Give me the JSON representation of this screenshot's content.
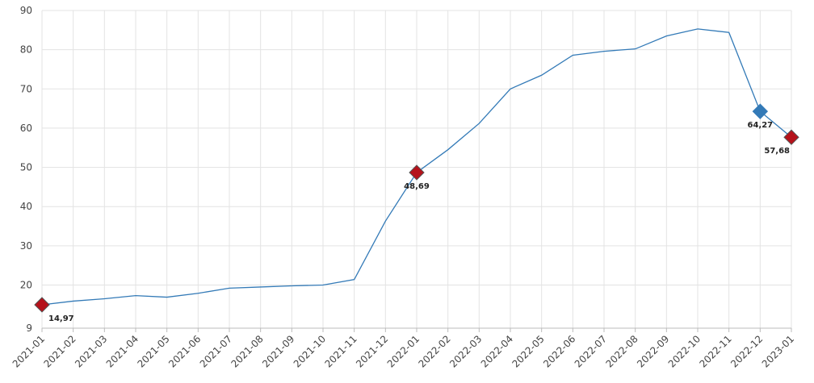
{
  "chart_data": {
    "type": "line",
    "categories": [
      "2021-01",
      "2021-02",
      "2021-03",
      "2021-04",
      "2021-05",
      "2021-06",
      "2021-07",
      "2021-08",
      "2021-09",
      "2021-10",
      "2021-11",
      "2021-12",
      "2022-01",
      "2022-02",
      "2022-03",
      "2022-04",
      "2022-05",
      "2022-06",
      "2022-07",
      "2022-08",
      "2022-09",
      "2022-10",
      "2022-11",
      "2022-12",
      "2023-01"
    ],
    "values": [
      14.97,
      15.9,
      16.5,
      17.3,
      16.9,
      17.9,
      19.2,
      19.5,
      19.8,
      20.0,
      21.4,
      36.3,
      48.69,
      54.5,
      61.2,
      70.0,
      73.5,
      78.6,
      79.6,
      80.2,
      83.5,
      85.3,
      84.4,
      64.27,
      57.68
    ],
    "value_labels": [
      "14,97",
      null,
      null,
      null,
      null,
      null,
      null,
      null,
      null,
      null,
      null,
      null,
      "48,69",
      null,
      null,
      null,
      null,
      null,
      null,
      null,
      null,
      null,
      null,
      "64,27",
      "57,68"
    ],
    "marker_colors": [
      "#b5121b",
      null,
      null,
      null,
      null,
      null,
      null,
      null,
      null,
      null,
      null,
      null,
      "#b5121b",
      null,
      null,
      null,
      null,
      null,
      null,
      null,
      null,
      null,
      null,
      "#337ab7",
      "#b5121b"
    ],
    "color": "#337ab7",
    "ylim": [
      9,
      90
    ],
    "yticks": [
      9,
      20,
      30,
      40,
      50,
      60,
      70,
      80,
      90
    ],
    "grid": true
  }
}
